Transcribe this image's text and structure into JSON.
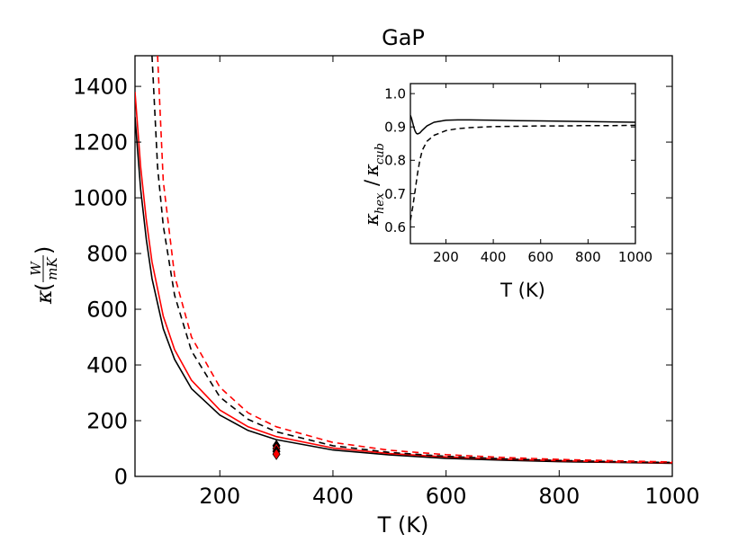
{
  "chart_data": [
    {
      "type": "line",
      "title": "GaP",
      "xlabel": "T (K)",
      "ylabel": {
        "kappa": "κ",
        "num": "W",
        "den": "mK"
      },
      "xlim": [
        50,
        1000
      ],
      "ylim": [
        0,
        1510
      ],
      "xticks": [
        200,
        400,
        600,
        800,
        1000
      ],
      "yticks": [
        0,
        200,
        400,
        600,
        800,
        1000,
        1200,
        1400
      ],
      "grid": false,
      "series": [
        {
          "style": "solid",
          "color": "#000000",
          "x": [
            50,
            60,
            70,
            80,
            100,
            120,
            150,
            200,
            250,
            300,
            400,
            500,
            600,
            700,
            800,
            900,
            1000
          ],
          "y": [
            1290,
            1030,
            850,
            710,
            530,
            420,
            315,
            220,
            165,
            132,
            95,
            77,
            65,
            58,
            53,
            50,
            47
          ]
        },
        {
          "style": "solid",
          "color": "#ff0000",
          "x": [
            50,
            60,
            70,
            80,
            100,
            120,
            150,
            200,
            250,
            300,
            400,
            500,
            600,
            700,
            800,
            900,
            1000
          ],
          "y": [
            1380,
            1110,
            920,
            770,
            575,
            455,
            345,
            238,
            178,
            143,
            102,
            82,
            70,
            62,
            56,
            52,
            49
          ]
        },
        {
          "style": "dashed",
          "color": "#000000",
          "x": [
            80,
            90,
            100,
            120,
            150,
            200,
            250,
            300,
            400,
            500,
            600,
            700,
            800,
            900,
            1000
          ],
          "y": [
            1510,
            1110,
            900,
            650,
            450,
            285,
            205,
            160,
            110,
            86,
            72,
            63,
            57,
            53,
            50
          ]
        },
        {
          "style": "dashed",
          "color": "#ff0000",
          "x": [
            90,
            100,
            120,
            150,
            200,
            250,
            300,
            400,
            500,
            600,
            700,
            800,
            900,
            1000
          ],
          "y": [
            1510,
            1060,
            720,
            500,
            320,
            228,
            178,
            122,
            94,
            78,
            68,
            61,
            56,
            52
          ]
        }
      ],
      "markers": [
        {
          "x": 300,
          "y": 110,
          "color": "#000000"
        },
        {
          "x": 300,
          "y": 100,
          "color": "#ff0000"
        },
        {
          "x": 300,
          "y": 90,
          "color": "#000000"
        },
        {
          "x": 300,
          "y": 80,
          "color": "#ff0000"
        }
      ]
    },
    {
      "type": "line",
      "title": "",
      "xlabel": "T (K)",
      "ylabel": {
        "kappa": "κ",
        "sub1": "hex",
        "sub2": "cub"
      },
      "xlim": [
        50,
        1000
      ],
      "ylim": [
        0.55,
        1.03
      ],
      "xticks": [
        200,
        400,
        600,
        800,
        1000
      ],
      "yticks": [
        0.6,
        0.7,
        0.8,
        0.9,
        1.0
      ],
      "ytick_labels": [
        "0.6",
        "0.7",
        "0.8",
        "0.9",
        "1.0"
      ],
      "grid": false,
      "series": [
        {
          "style": "solid",
          "color": "#000000",
          "x": [
            50,
            55,
            60,
            65,
            70,
            75,
            80,
            90,
            100,
            120,
            150,
            200,
            250,
            300,
            400,
            500,
            600,
            700,
            800,
            900,
            1000
          ],
          "y": [
            0.935,
            0.925,
            0.912,
            0.898,
            0.887,
            0.881,
            0.879,
            0.882,
            0.89,
            0.903,
            0.914,
            0.92,
            0.921,
            0.921,
            0.92,
            0.919,
            0.918,
            0.917,
            0.916,
            0.915,
            0.914
          ]
        },
        {
          "style": "dashed",
          "color": "#000000",
          "x": [
            50,
            60,
            70,
            80,
            90,
            100,
            120,
            150,
            200,
            250,
            300,
            400,
            500,
            600,
            700,
            800,
            900,
            1000
          ],
          "y": [
            0.62,
            0.66,
            0.71,
            0.76,
            0.8,
            0.83,
            0.857,
            0.875,
            0.889,
            0.895,
            0.898,
            0.901,
            0.902,
            0.903,
            0.903,
            0.904,
            0.904,
            0.905
          ]
        }
      ]
    }
  ]
}
